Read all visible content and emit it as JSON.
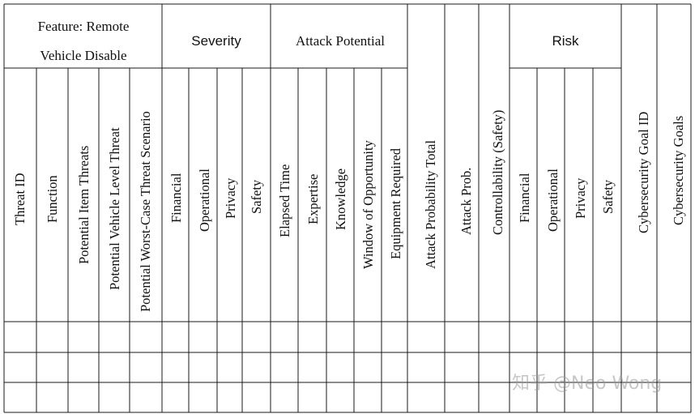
{
  "table": {
    "group_headers": {
      "feature_line1": "Feature: Remote",
      "feature_line2": "Vehicle Disable",
      "severity": "Severity",
      "attack_potential": "Attack Potential",
      "risk": "Risk"
    },
    "columns": {
      "threat_id": "Threat ID",
      "function": "Function",
      "potential_item_threats": "Potential Item Threats",
      "potential_vehicle_level_threat": "Potential Vehicle Level Threat",
      "potential_worst_case_threat_scenario": "Potential Worst-Case Threat Scenario",
      "sev_financial": "Financial",
      "sev_operational": "Operational",
      "sev_privacy": "Privacy",
      "sev_safety": "Safety",
      "elapsed_time": "Elapsed Time",
      "expertise": "Expertise",
      "knowledge": "Knowledge",
      "window_of_opportunity": "Window of Opportunity",
      "equipment_required": "Equipment Required",
      "attack_probability_total": "Attack Probability Total",
      "attack_prob": "Attack Prob.",
      "controllability": "Controllability (Safety)",
      "risk_financial": "Financial",
      "risk_operational": "Operational",
      "risk_privacy": "Privacy",
      "risk_safety": "Safety",
      "cybersecurity_goal_id": "Cybersecurity Goal ID",
      "cybersecurity_goals": "Cybersecurity Goals"
    },
    "body_rows": 3
  },
  "watermark": "知乎 @Neo Wong"
}
